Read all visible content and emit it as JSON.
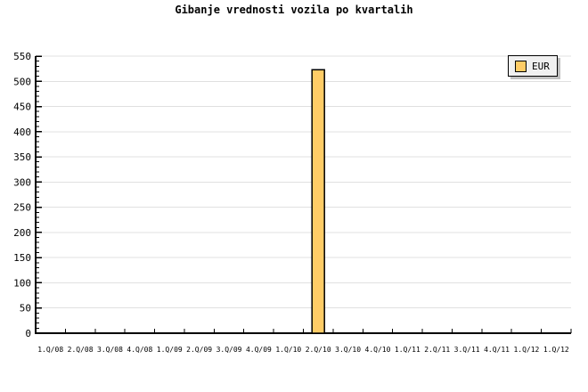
{
  "title": "Gibanje vrednosti vozila po kvartalih",
  "legend": {
    "label": "EUR",
    "swatch_color": "#FFCC66"
  },
  "chart_data": {
    "type": "bar",
    "title": "Gibanje vrednosti vozila po kvartalih",
    "categories": [
      "1.Q/08",
      "2.Q/08",
      "3.Q/08",
      "4.Q/08",
      "1.Q/09",
      "2.Q/09",
      "3.Q/09",
      "4.Q/09",
      "1.Q/10",
      "2.Q/10",
      "3.Q/10",
      "4.Q/10",
      "1.Q/11",
      "2.Q/11",
      "3.Q/11",
      "4.Q/11",
      "1.Q/12",
      "1.Q/12"
    ],
    "series": [
      {
        "name": "EUR",
        "values": [
          0,
          0,
          0,
          0,
          0,
          0,
          0,
          0,
          0,
          523,
          0,
          0,
          0,
          0,
          0,
          0,
          0,
          0
        ]
      }
    ],
    "xlabel": "",
    "ylabel": "",
    "ylim": [
      0,
      550
    ],
    "y_ticks": [
      0,
      50,
      100,
      150,
      200,
      250,
      300,
      350,
      400,
      450,
      500,
      550
    ],
    "y_major_step": 50,
    "y_minor_step": 10,
    "grid": "horizontal-major",
    "legend_position": "top-right",
    "colors": {
      "bar_fill": "#FFCC66",
      "bar_border": "#000000",
      "gridline": "#e0e0e0",
      "axis": "#000000",
      "text": "#000000",
      "legend_background": "#f0f0f0",
      "legend_shadow": "#c0c0c0"
    }
  }
}
